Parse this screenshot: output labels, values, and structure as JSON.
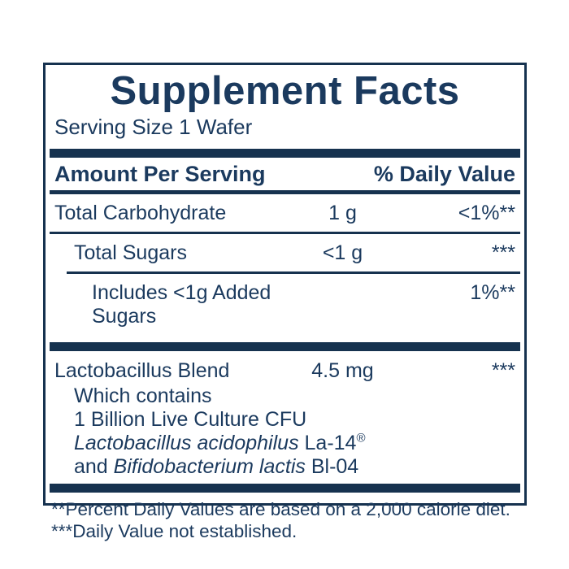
{
  "accent_color": "#16324f",
  "text_color": "#1b3a5e",
  "panel": {
    "title": "Supplement Facts",
    "serving_size": "Serving Size 1 Wafer",
    "header": {
      "amount_label": "Amount Per Serving",
      "dv_label": "% Daily Value"
    },
    "rows": [
      {
        "name": "Total Carbohydrate",
        "amount": "1 g",
        "dv": "<1%**"
      },
      {
        "name": "Total Sugars",
        "amount": "<1 g",
        "dv": "***"
      },
      {
        "name": "Includes <1g Added Sugars",
        "amount": "",
        "dv": "1%**"
      }
    ],
    "blend": {
      "name": "Lactobacillus Blend",
      "amount": "4.5 mg",
      "dv": "***",
      "details": {
        "line1": "Which contains",
        "line2": "1 Billion Live Culture CFU",
        "line3_italic": "Lactobacillus acidophilus",
        "line3_regular": " La-14",
        "line3_mark": "®",
        "line4_pre": "and ",
        "line4_italic": "Bifidobacterium lactis",
        "line4_post": " Bl-04"
      }
    },
    "footnotes": [
      "**Percent Daily Values are based on a 2,000 calorie diet.",
      "***Daily Value not established."
    ]
  }
}
